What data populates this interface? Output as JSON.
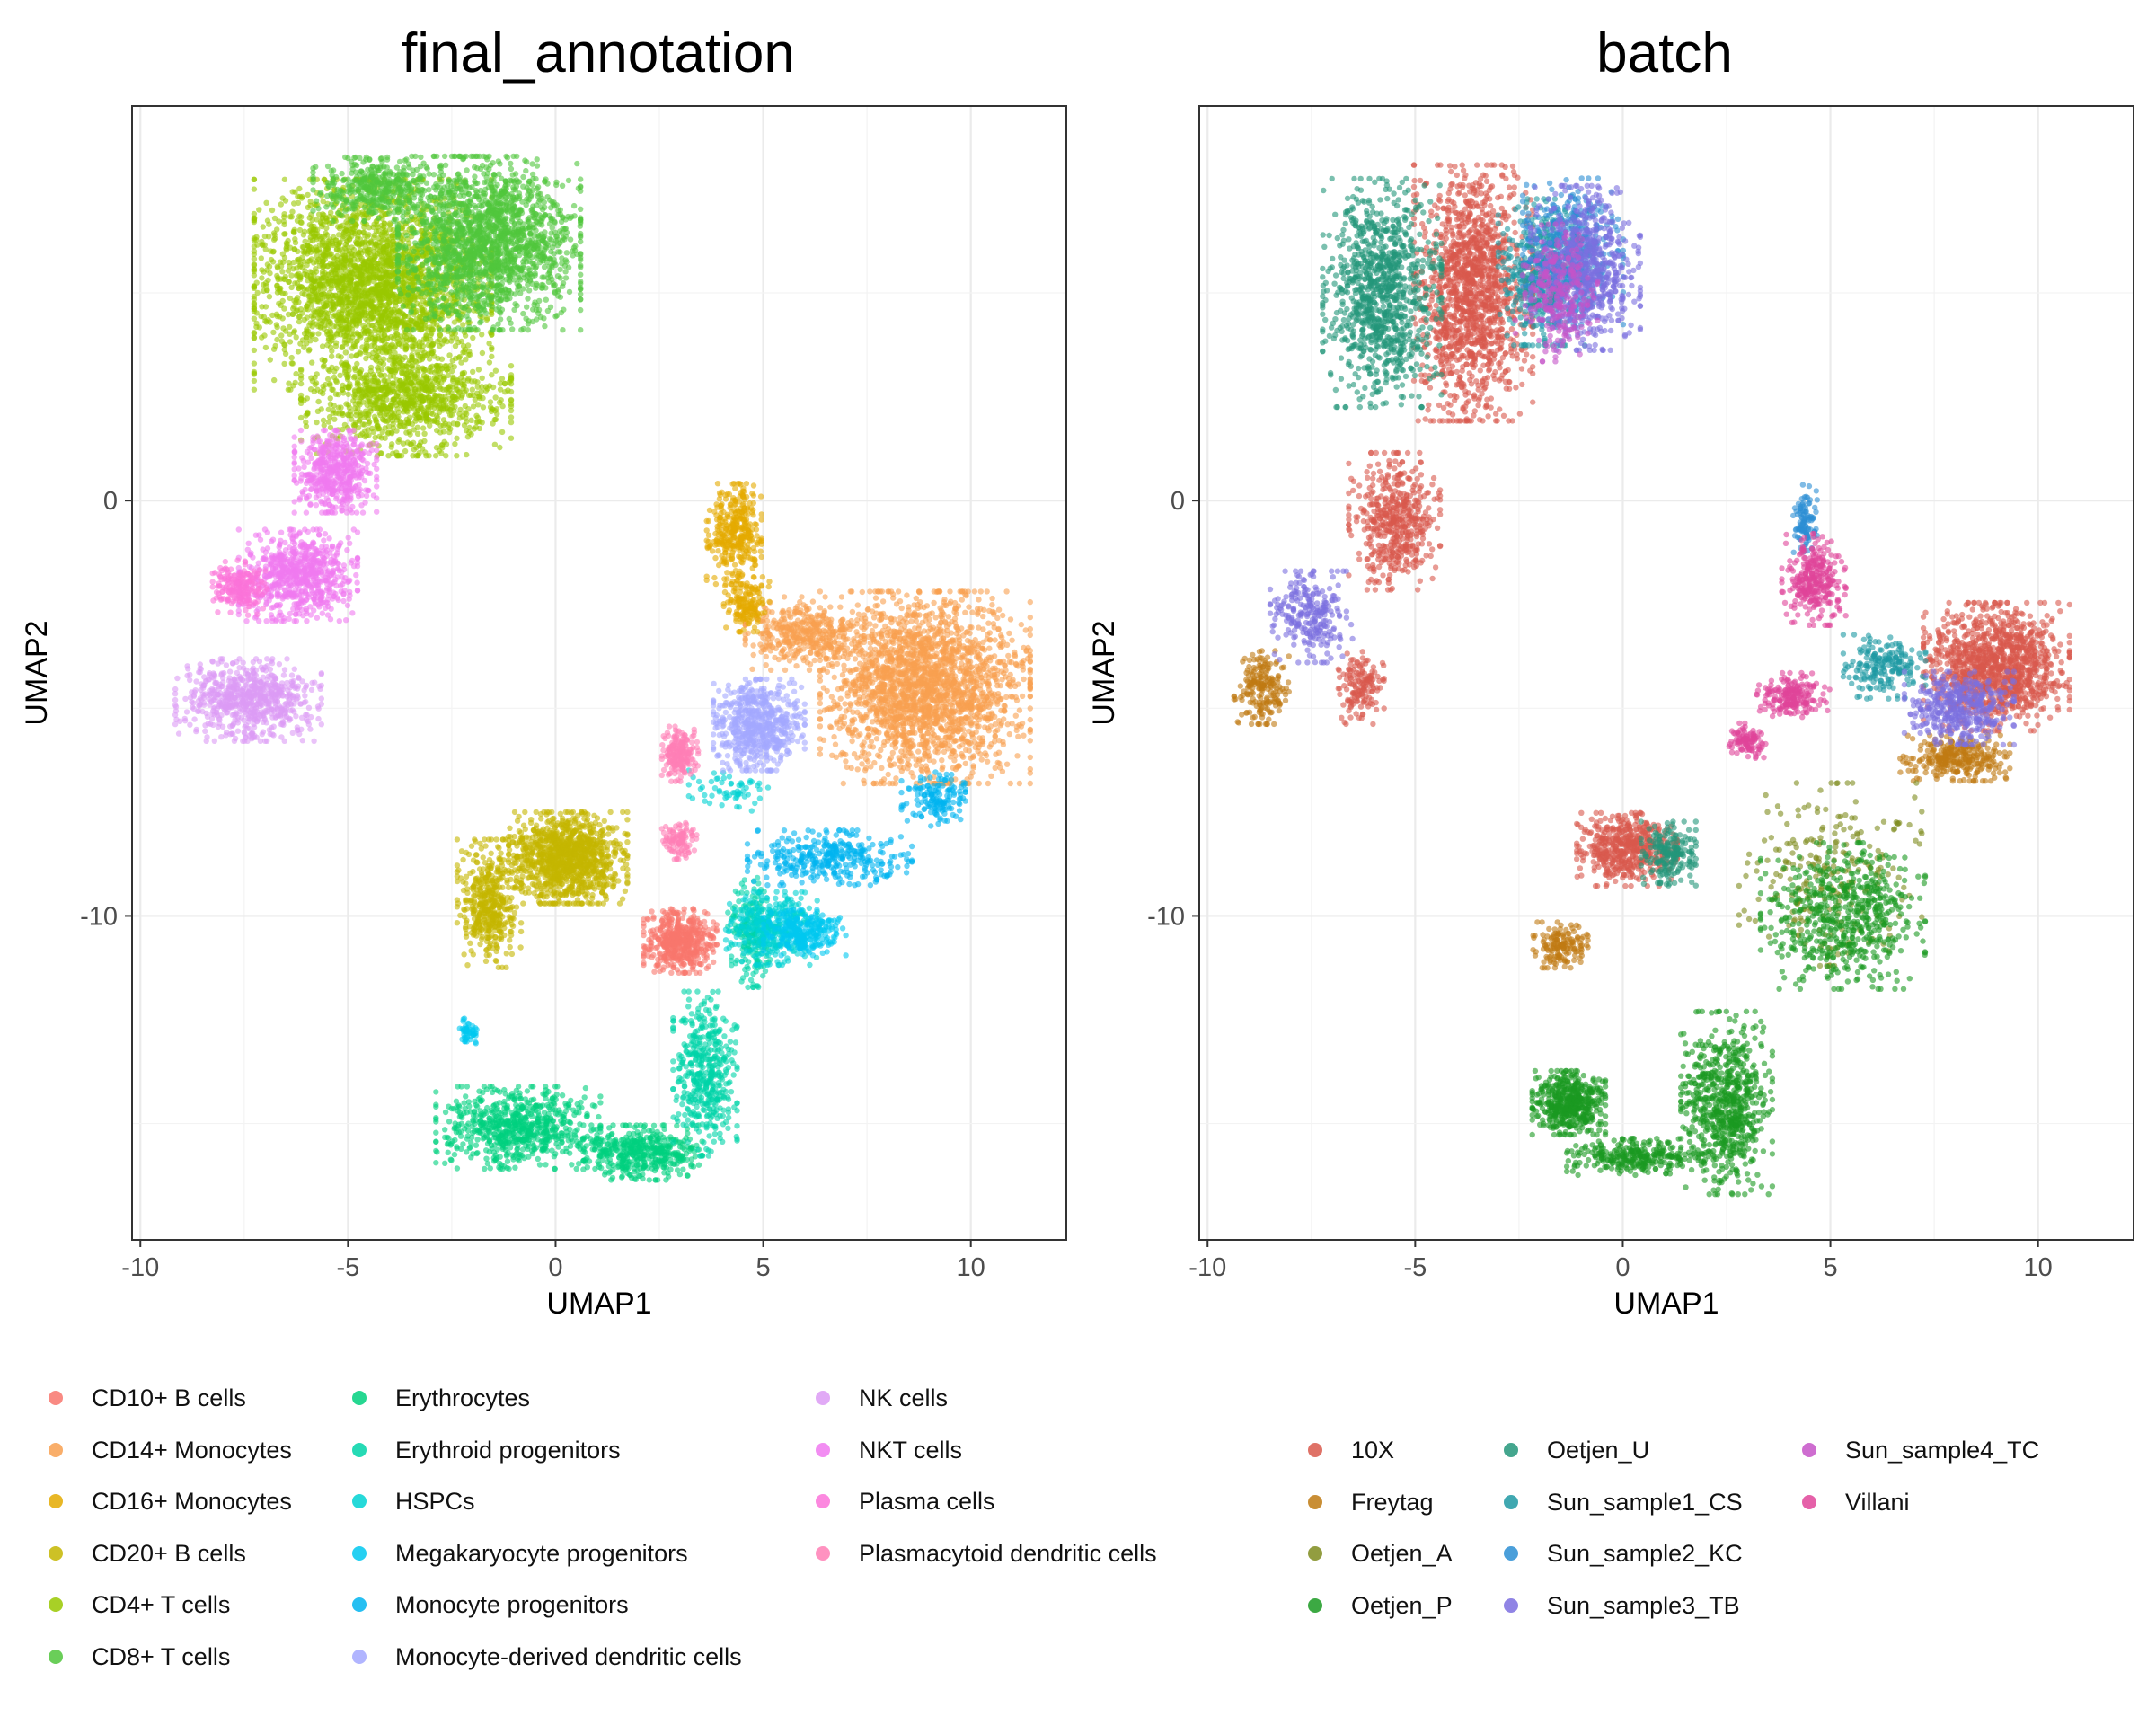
{
  "chart_data": [
    {
      "type": "scatter",
      "title": "final_annotation",
      "xlabel": "UMAP1",
      "ylabel": "UMAP2",
      "xlim": [
        -10.2,
        12.3
      ],
      "ylim": [
        -17.8,
        9.5
      ],
      "xticks": [
        -10,
        -5,
        0,
        5,
        10
      ],
      "yticks": [
        0,
        -10
      ],
      "xtick_labels": [
        "-10",
        "-5",
        "0",
        "5",
        "10"
      ],
      "ytick_labels": [
        "0",
        "-10"
      ],
      "grid": true,
      "point_size": "small",
      "alpha": 0.6,
      "series": [
        {
          "name": "CD10+ B cells",
          "color": "#F8766D",
          "clusters": [
            {
              "cx": 3.0,
              "cy": -10.6,
              "rx": 0.8,
              "ry": 0.7,
              "n": 500
            }
          ]
        },
        {
          "name": "CD14+ Monocytes",
          "color": "#F8A050",
          "clusters": [
            {
              "cx": 8.9,
              "cy": -4.5,
              "rx": 2.3,
              "ry": 2.1,
              "n": 2200
            },
            {
              "cx": 6.0,
              "cy": -3.2,
              "rx": 1.3,
              "ry": 0.8,
              "n": 400
            }
          ]
        },
        {
          "name": "CD16+ Monocytes",
          "color": "#E4AA00",
          "clusters": [
            {
              "cx": 4.3,
              "cy": -0.8,
              "rx": 0.6,
              "ry": 1.1,
              "n": 350
            },
            {
              "cx": 4.6,
              "cy": -2.5,
              "rx": 0.5,
              "ry": 0.6,
              "n": 150
            }
          ]
        },
        {
          "name": "CD20+ B cells",
          "color": "#C4B600",
          "clusters": [
            {
              "cx": 0.3,
              "cy": -8.6,
              "rx": 1.3,
              "ry": 1.0,
              "n": 1100
            },
            {
              "cx": -1.6,
              "cy": -9.7,
              "rx": 0.7,
              "ry": 1.4,
              "n": 450
            }
          ]
        },
        {
          "name": "CD4+ T cells",
          "color": "#99C800",
          "clusters": [
            {
              "cx": -4.4,
              "cy": 5.2,
              "rx": 2.6,
              "ry": 2.3,
              "n": 2600
            },
            {
              "cx": -3.6,
              "cy": 2.4,
              "rx": 2.3,
              "ry": 1.2,
              "n": 900
            }
          ]
        },
        {
          "name": "CD8+ T cells",
          "color": "#50C63C",
          "clusters": [
            {
              "cx": -1.6,
              "cy": 6.2,
              "rx": 2.0,
              "ry": 1.9,
              "n": 1800
            },
            {
              "cx": -4.3,
              "cy": 7.5,
              "rx": 1.4,
              "ry": 0.7,
              "n": 400
            }
          ]
        },
        {
          "name": "Erythrocytes",
          "color": "#00D07E",
          "clusters": [
            {
              "cx": -0.9,
              "cy": -15.1,
              "rx": 1.8,
              "ry": 0.9,
              "n": 700
            },
            {
              "cx": 2.1,
              "cy": -15.7,
              "rx": 1.3,
              "ry": 0.6,
              "n": 450
            }
          ]
        },
        {
          "name": "Erythroid progenitors",
          "color": "#00D3A8",
          "clusters": [
            {
              "cx": 3.6,
              "cy": -13.8,
              "rx": 0.7,
              "ry": 1.8,
              "n": 450
            },
            {
              "cx": 4.7,
              "cy": -10.4,
              "rx": 0.5,
              "ry": 1.2,
              "n": 200
            }
          ]
        },
        {
          "name": "HSPCs",
          "color": "#00D2D2",
          "clusters": [
            {
              "cx": 5.2,
              "cy": -10.3,
              "rx": 1.0,
              "ry": 0.8,
              "n": 350
            },
            {
              "cx": 4.2,
              "cy": -7.0,
              "rx": 0.9,
              "ry": 0.5,
              "n": 60
            }
          ]
        },
        {
          "name": "Megakaryocyte progenitors",
          "color": "#00C8F0",
          "clusters": [
            {
              "cx": 6.0,
              "cy": -10.4,
              "rx": 0.9,
              "ry": 0.5,
              "n": 250
            },
            {
              "cx": -2.1,
              "cy": -12.8,
              "rx": 0.2,
              "ry": 0.3,
              "n": 50
            }
          ]
        },
        {
          "name": "Monocyte progenitors",
          "color": "#00B4F0",
          "clusters": [
            {
              "cx": 6.6,
              "cy": -8.6,
              "rx": 1.8,
              "ry": 0.6,
              "n": 350
            },
            {
              "cx": 9.1,
              "cy": -7.2,
              "rx": 0.7,
              "ry": 0.6,
              "n": 150
            }
          ]
        },
        {
          "name": "Monocyte-derived dendritic cells",
          "color": "#A3A8FF",
          "clusters": [
            {
              "cx": 4.9,
              "cy": -5.4,
              "rx": 1.0,
              "ry": 1.0,
              "n": 600
            }
          ]
        },
        {
          "name": "NK cells",
          "color": "#DC9BF5",
          "clusters": [
            {
              "cx": -7.4,
              "cy": -4.8,
              "rx": 1.6,
              "ry": 0.9,
              "n": 700
            }
          ]
        },
        {
          "name": "NKT cells",
          "color": "#F079F0",
          "clusters": [
            {
              "cx": -6.2,
              "cy": -1.8,
              "rx": 1.3,
              "ry": 1.0,
              "n": 700
            },
            {
              "cx": -5.3,
              "cy": 0.7,
              "rx": 0.9,
              "ry": 0.9,
              "n": 500
            }
          ]
        },
        {
          "name": "Plasma cells",
          "color": "#FB73D9",
          "clusters": [
            {
              "cx": -7.6,
              "cy": -2.1,
              "rx": 0.6,
              "ry": 0.6,
              "n": 200
            }
          ]
        },
        {
          "name": "Plasmacytoid dendritic cells",
          "color": "#FF7FB5",
          "clusters": [
            {
              "cx": 3.0,
              "cy": -6.1,
              "rx": 0.4,
              "ry": 0.6,
              "n": 200
            },
            {
              "cx": 3.0,
              "cy": -8.2,
              "rx": 0.4,
              "ry": 0.4,
              "n": 100
            }
          ]
        }
      ]
    },
    {
      "type": "scatter",
      "title": "batch",
      "xlabel": "UMAP1",
      "ylabel": "UMAP2",
      "xlim": [
        -10.2,
        12.3
      ],
      "ylim": [
        -17.8,
        9.5
      ],
      "xticks": [
        -10,
        -5,
        0,
        5,
        10
      ],
      "yticks": [
        0,
        -10
      ],
      "xtick_labels": [
        "-10",
        "-5",
        "0",
        "5",
        "10"
      ],
      "ytick_labels": [
        "0",
        "-10"
      ],
      "grid": true,
      "point_size": "small",
      "alpha": 0.6,
      "series": [
        {
          "name": "10X",
          "color": "#D9594C",
          "clusters": [
            {
              "cx": -3.6,
              "cy": 5.0,
              "rx": 1.3,
              "ry": 2.8,
              "n": 1400
            },
            {
              "cx": 9.0,
              "cy": -4.0,
              "rx": 1.6,
              "ry": 1.4,
              "n": 1200
            },
            {
              "cx": 0.1,
              "cy": -8.4,
              "rx": 1.1,
              "ry": 0.8,
              "n": 500
            },
            {
              "cx": -5.5,
              "cy": -0.5,
              "rx": 1.0,
              "ry": 1.5,
              "n": 500
            },
            {
              "cx": -6.3,
              "cy": -4.5,
              "rx": 0.5,
              "ry": 0.8,
              "n": 150
            }
          ]
        },
        {
          "name": "Freytag",
          "color": "#C07A12",
          "clusters": [
            {
              "cx": -8.7,
              "cy": -4.5,
              "rx": 0.6,
              "ry": 0.8,
              "n": 200
            },
            {
              "cx": -1.5,
              "cy": -10.7,
              "rx": 0.6,
              "ry": 0.5,
              "n": 150
            },
            {
              "cx": 8.0,
              "cy": -6.2,
              "rx": 1.2,
              "ry": 0.5,
              "n": 300
            }
          ]
        },
        {
          "name": "Oetjen_A",
          "color": "#7F8C1E",
          "clusters": [
            {
              "cx": 5.0,
              "cy": -9.0,
              "rx": 2.0,
              "ry": 2.0,
              "n": 250
            }
          ]
        },
        {
          "name": "Oetjen_P",
          "color": "#1A9A22",
          "clusters": [
            {
              "cx": -1.3,
              "cy": -14.5,
              "rx": 0.8,
              "ry": 0.7,
              "n": 500
            },
            {
              "cx": 2.5,
              "cy": -14.5,
              "rx": 1.0,
              "ry": 2.0,
              "n": 700
            },
            {
              "cx": 5.3,
              "cy": -10.0,
              "rx": 1.8,
              "ry": 1.6,
              "n": 600
            },
            {
              "cx": 0.3,
              "cy": -15.8,
              "rx": 1.5,
              "ry": 0.4,
              "n": 300
            }
          ]
        },
        {
          "name": "Oetjen_U",
          "color": "#23967A",
          "clusters": [
            {
              "cx": -5.8,
              "cy": 5.0,
              "rx": 1.3,
              "ry": 2.5,
              "n": 1000
            },
            {
              "cx": 1.1,
              "cy": -8.5,
              "rx": 0.6,
              "ry": 0.7,
              "n": 200
            }
          ]
        },
        {
          "name": "Sun_sample1_CS",
          "color": "#1E99A3",
          "clusters": [
            {
              "cx": -1.9,
              "cy": 5.5,
              "rx": 1.0,
              "ry": 1.6,
              "n": 500
            },
            {
              "cx": 6.3,
              "cy": -4.0,
              "rx": 0.9,
              "ry": 0.7,
              "n": 200
            }
          ]
        },
        {
          "name": "Sun_sample2_KC",
          "color": "#2B8ED3",
          "clusters": [
            {
              "cx": -1.2,
              "cy": 6.0,
              "rx": 1.1,
              "ry": 1.6,
              "n": 400
            },
            {
              "cx": 4.4,
              "cy": -0.5,
              "rx": 0.3,
              "ry": 0.8,
              "n": 100
            }
          ]
        },
        {
          "name": "Sun_sample3_TB",
          "color": "#7C6FE0",
          "clusters": [
            {
              "cx": -0.9,
              "cy": 5.6,
              "rx": 1.2,
              "ry": 1.8,
              "n": 700
            },
            {
              "cx": 8.1,
              "cy": -5.0,
              "rx": 1.2,
              "ry": 0.8,
              "n": 400
            },
            {
              "cx": -7.5,
              "cy": -2.8,
              "rx": 0.9,
              "ry": 1.0,
              "n": 250
            }
          ]
        },
        {
          "name": "Sun_sample4_TC",
          "color": "#C553C8",
          "clusters": [
            {
              "cx": -1.6,
              "cy": 5.0,
              "rx": 0.9,
              "ry": 1.5,
              "n": 250
            }
          ]
        },
        {
          "name": "Villani",
          "color": "#E0459A",
          "clusters": [
            {
              "cx": 4.6,
              "cy": -1.9,
              "rx": 0.7,
              "ry": 1.0,
              "n": 300
            },
            {
              "cx": 4.1,
              "cy": -4.7,
              "rx": 0.8,
              "ry": 0.5,
              "n": 200
            },
            {
              "cx": 3.0,
              "cy": -5.8,
              "rx": 0.4,
              "ry": 0.4,
              "n": 100
            }
          ]
        }
      ]
    }
  ],
  "legends": {
    "annotation": {
      "columns": [
        [
          "CD10+ B cells",
          "CD14+ Monocytes",
          "CD16+ Monocytes",
          "CD20+ B cells",
          "CD4+ T cells",
          "CD8+ T cells"
        ],
        [
          "Erythrocytes",
          "Erythroid progenitors",
          "HSPCs",
          "Megakaryocyte progenitors",
          "Monocyte progenitors",
          "Monocyte-derived dendritic cells"
        ],
        [
          "NK cells",
          "NKT cells",
          "Plasma cells",
          "Plasmacytoid dendritic cells"
        ]
      ]
    },
    "batch": {
      "columns": [
        [
          "10X",
          "Freytag",
          "Oetjen_A",
          "Oetjen_P"
        ],
        [
          "Oetjen_U",
          "Sun_sample1_CS",
          "Sun_sample2_KC",
          "Sun_sample3_TB"
        ],
        [
          "Sun_sample4_TC",
          "Villani"
        ]
      ]
    }
  }
}
